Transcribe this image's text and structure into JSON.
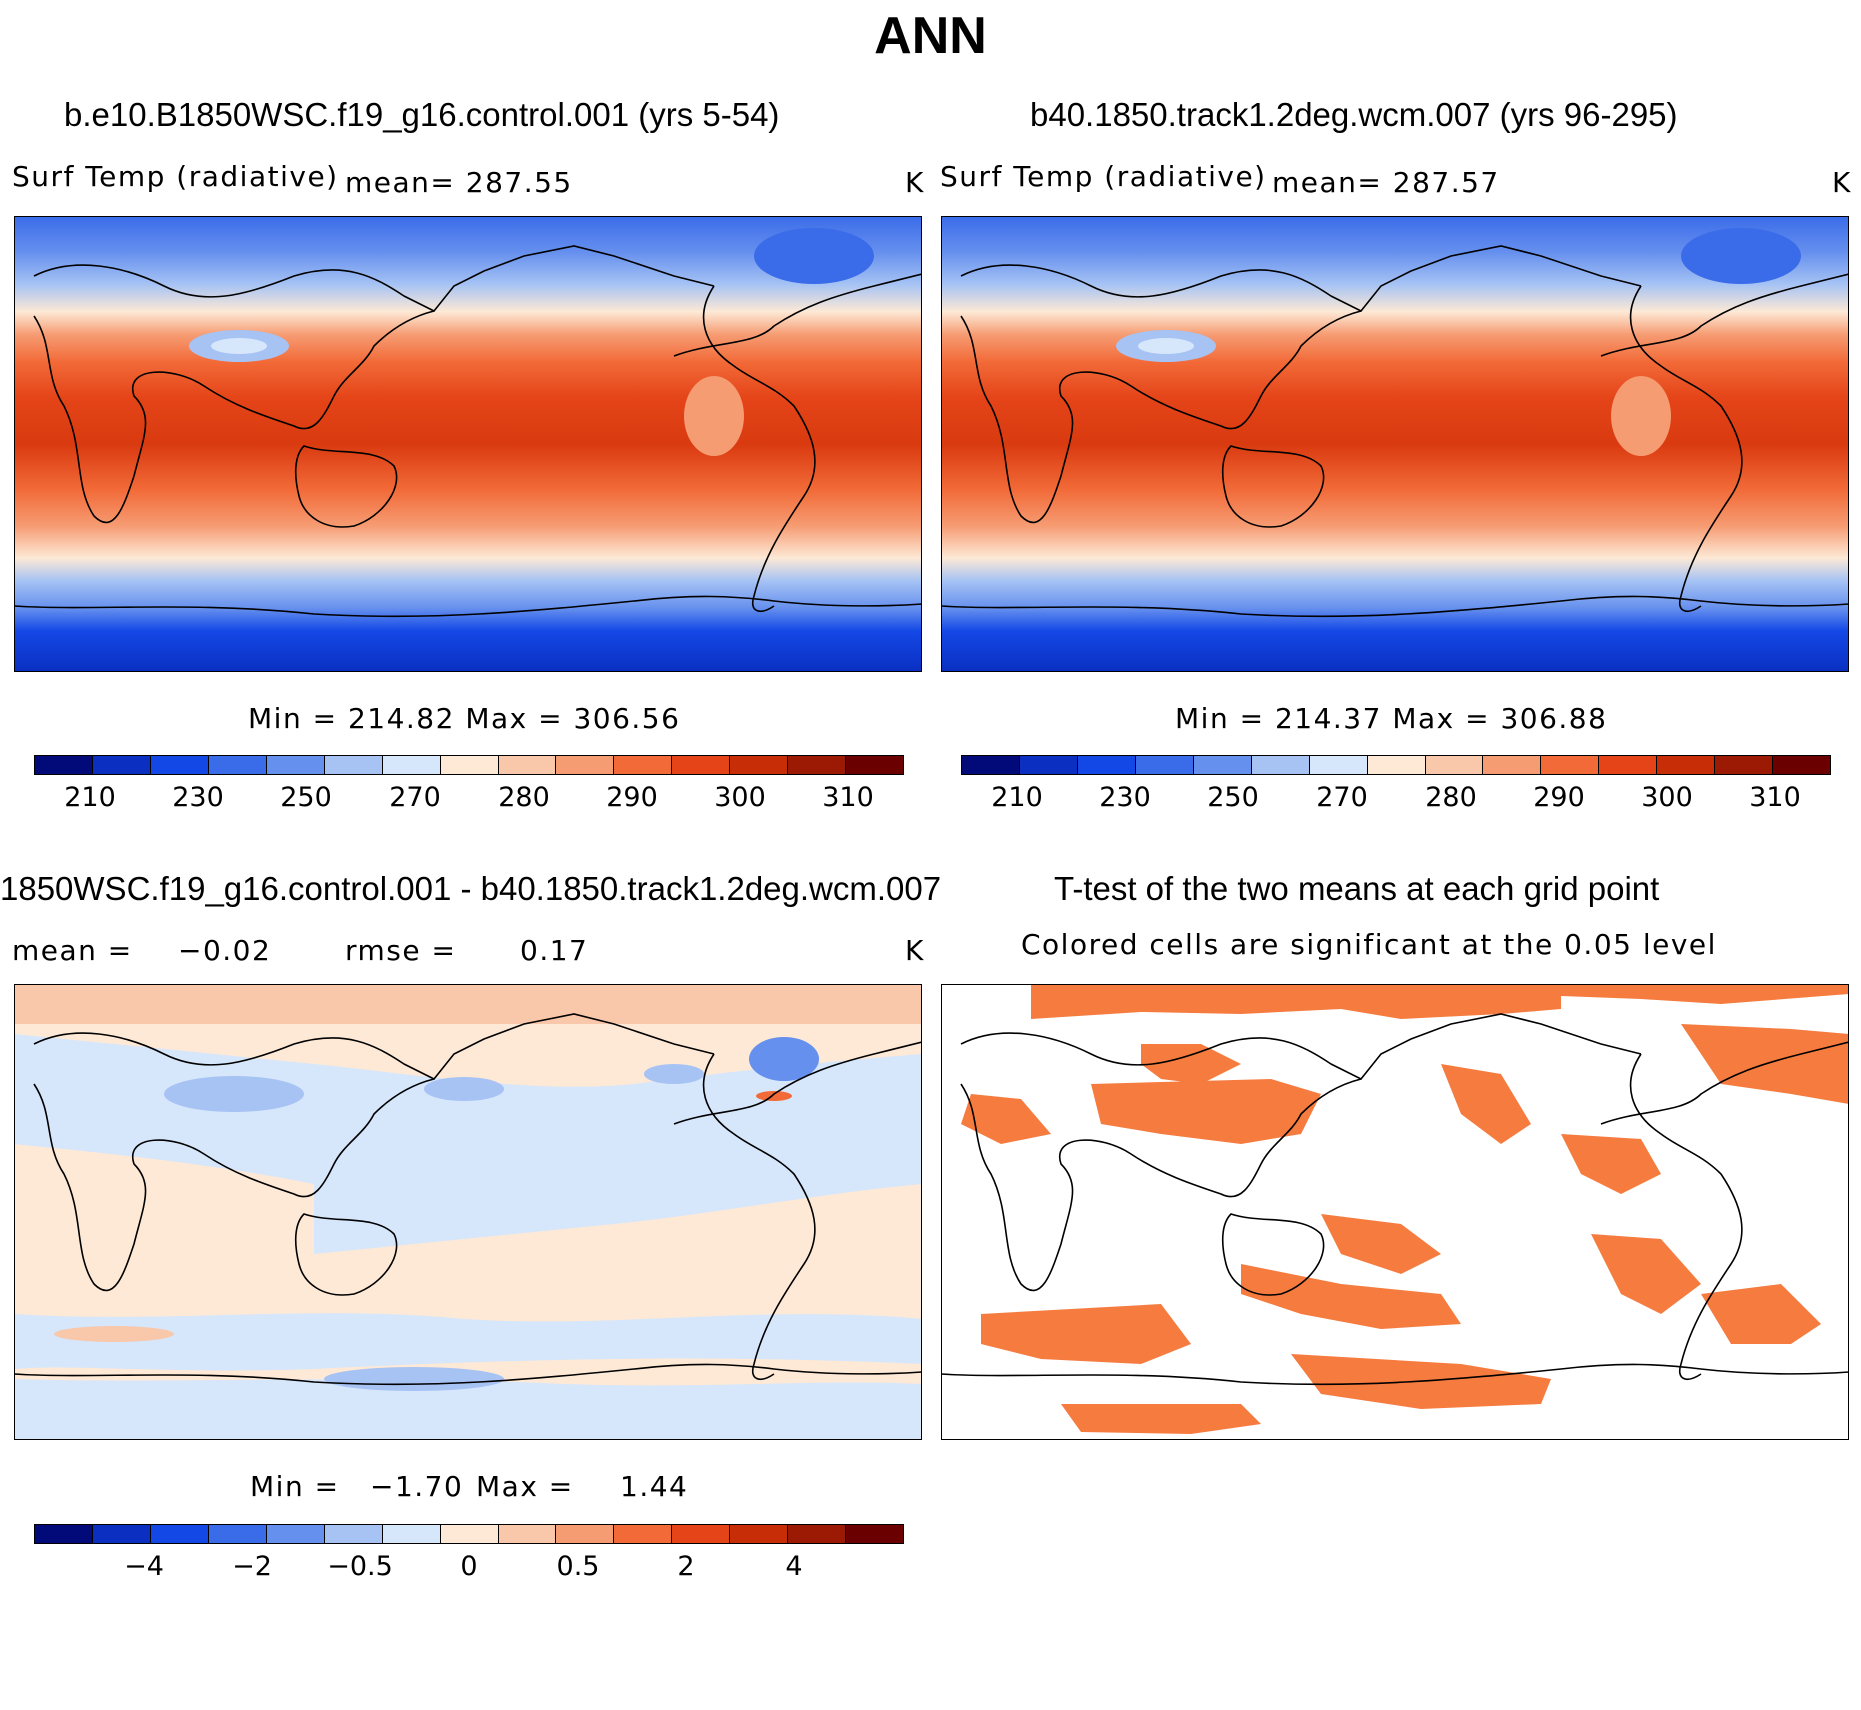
{
  "figure": {
    "title": "ANN"
  },
  "panels": {
    "p1": {
      "case": "b.e10.B1850WSC.f19_g16.control.001 (yrs 5-54)",
      "variable": "Surf Temp (radiative)",
      "mean_label": "mean= 287.55",
      "units": "K",
      "minmax": "Min = 214.82 Max = 306.56"
    },
    "p2": {
      "case": "b40.1850.track1.2deg.wcm.007 (yrs 96-295)",
      "variable": "Surf Temp (radiative)",
      "mean_label": "mean= 287.57",
      "units": "K",
      "minmax": "Min = 214.37 Max = 306.88"
    },
    "p3": {
      "case": "1850WSC.f19_g16.control.001 - b40.1850.track1.2deg.wcm.007",
      "mean_label": "mean =",
      "mean_value": "−0.02",
      "rmse_label": "rmse =",
      "rmse_value": "0.17",
      "units": "K",
      "minmax_min": "Min =",
      "minmax_min_value": "−1.70",
      "minmax_max": "Max =",
      "minmax_max_value": "1.44"
    },
    "p4": {
      "title": "T-test of the two means at each grid point",
      "subtitle": "Colored cells are significant at the 0.05 level"
    }
  },
  "colorbars": {
    "absolute": {
      "colors": [
        "#020a7a",
        "#0a2fc1",
        "#1448e6",
        "#3a6be9",
        "#6690ee",
        "#a6c3f4",
        "#d6e6fb",
        "#fde9d6",
        "#f9c7aa",
        "#f69c73",
        "#f26a38",
        "#e44418",
        "#c72d06",
        "#9c1a04",
        "#6b0000"
      ],
      "tick_labels": [
        "210",
        "230",
        "250",
        "270",
        "280",
        "290",
        "300",
        "310"
      ]
    },
    "difference": {
      "colors": [
        "#020a7a",
        "#0a2fc1",
        "#1448e6",
        "#3a6be9",
        "#6690ee",
        "#a6c3f4",
        "#d6e6fb",
        "#fde9d6",
        "#f9c7aa",
        "#f69c73",
        "#f26a38",
        "#e44418",
        "#c72d06",
        "#9c1a04",
        "#6b0000"
      ],
      "tick_labels": [
        "−4",
        "−2",
        "−0.5",
        "0",
        "0.5",
        "2",
        "4"
      ]
    }
  },
  "colors": {
    "significant": "#f57b3f"
  }
}
